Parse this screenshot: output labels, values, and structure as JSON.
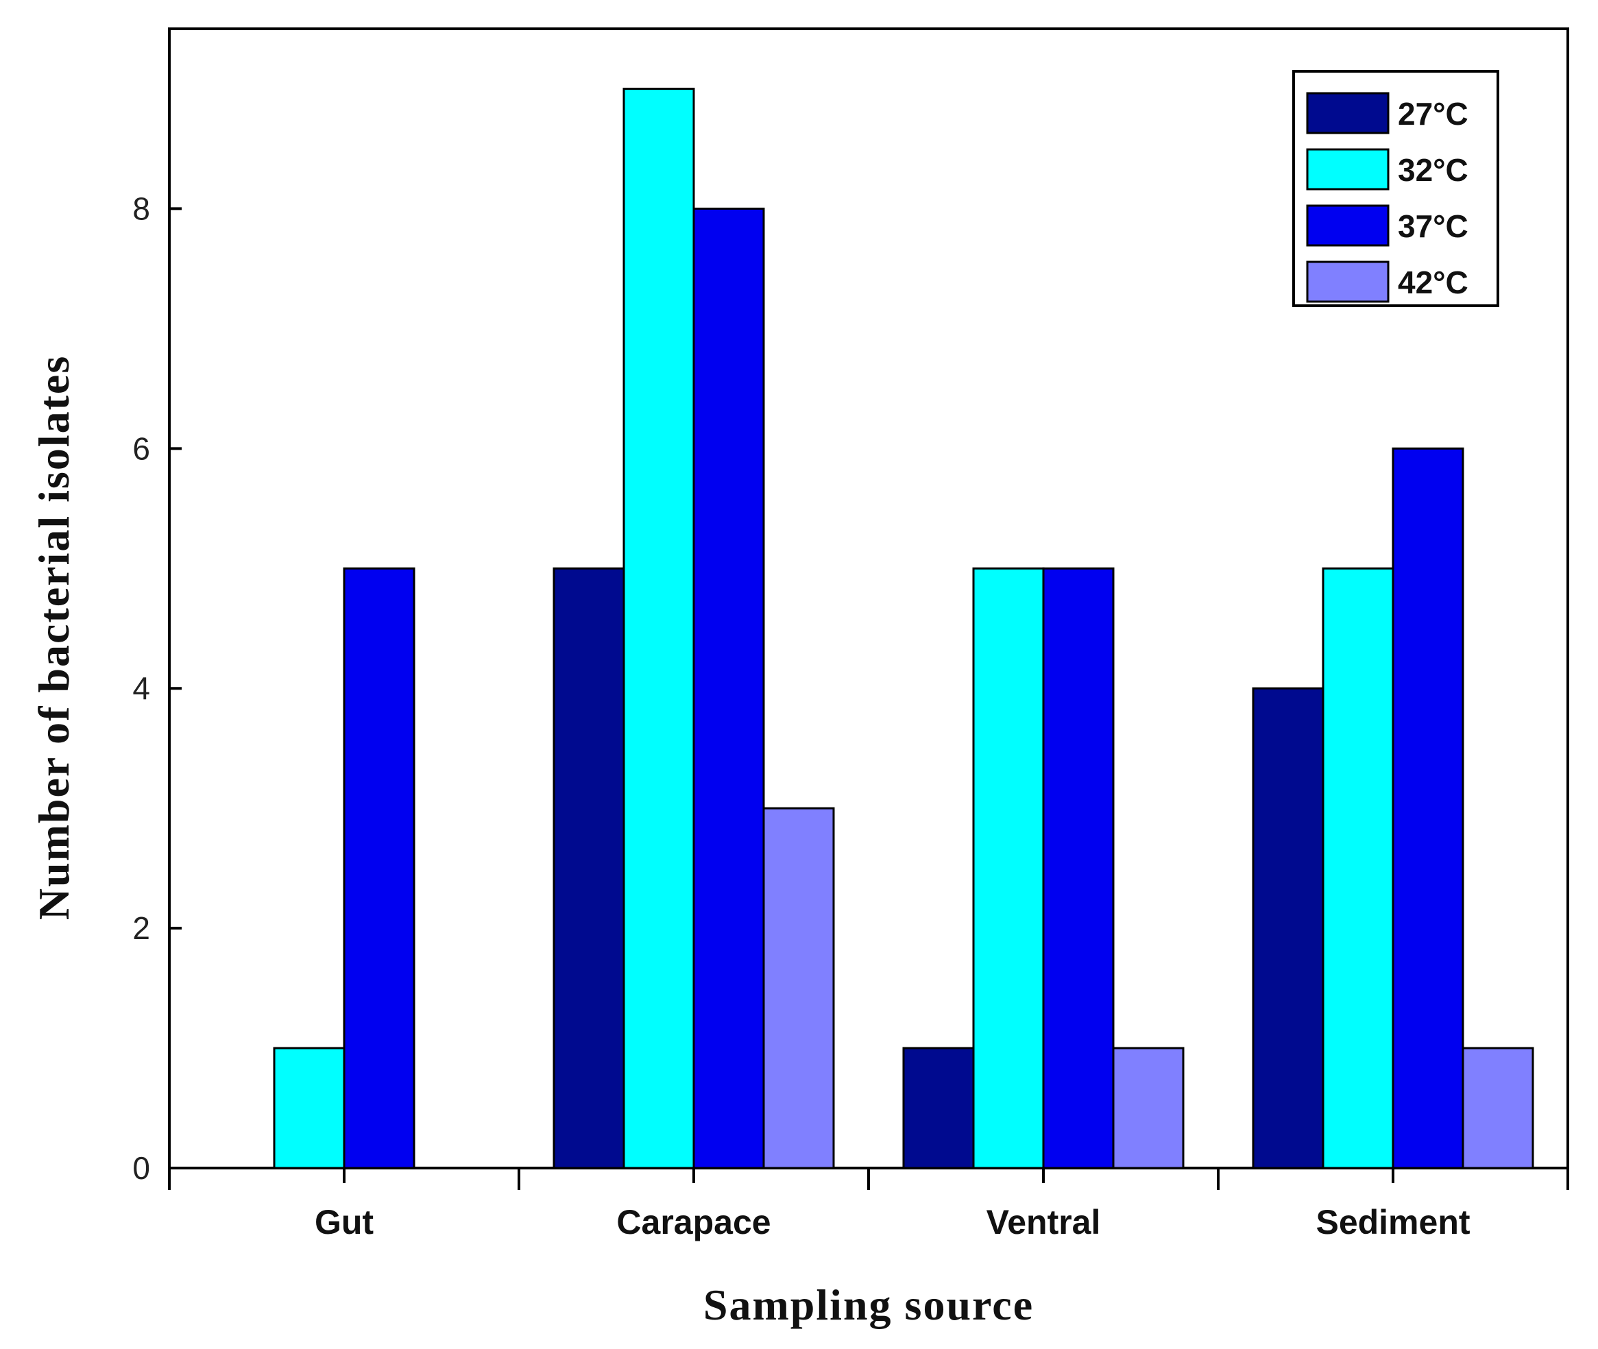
{
  "chart_data": {
    "type": "bar",
    "title": "",
    "xlabel": "Sampling source",
    "ylabel": "Number of bacterial isolates",
    "categories": [
      "Gut",
      "Carapace",
      "Ventral",
      "Sediment"
    ],
    "ylim": [
      0,
      9.5
    ],
    "yticks": [
      0,
      2,
      4,
      6,
      8
    ],
    "legend_position": "top-right",
    "series": [
      {
        "name": "27°C",
        "color": "#000a8f",
        "values": [
          0,
          5,
          1,
          4
        ]
      },
      {
        "name": "32°C",
        "color": "#00ffff",
        "values": [
          1,
          9,
          5,
          5
        ]
      },
      {
        "name": "37°C",
        "color": "#0000f0",
        "values": [
          5,
          8,
          5,
          6
        ]
      },
      {
        "name": "42°C",
        "color": "#8080ff",
        "values": [
          0,
          3,
          1,
          1
        ]
      }
    ]
  }
}
